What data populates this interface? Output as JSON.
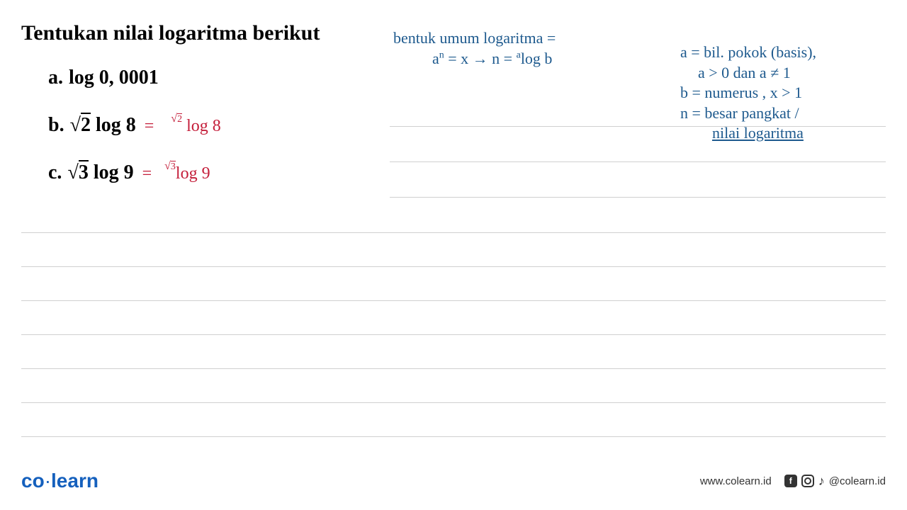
{
  "title": "Tentukan nilai logaritma berikut",
  "problems": {
    "a": {
      "label": "a.",
      "text": "log 0, 0001"
    },
    "b": {
      "label": "b.",
      "sqrt_val": "2",
      "rest": " log 8",
      "annot_eq": "=",
      "annot_sup_sqrt": "2",
      "annot_main": " log 8"
    },
    "c": {
      "label": "c.",
      "sqrt_val": "3",
      "rest": " log 9",
      "annot_eq": "=",
      "annot_sup_sqrt": "3",
      "annot_main": "log 9"
    }
  },
  "blue_notes": {
    "note1_line1": "bentuk umum logaritma =",
    "note1_line2_a": "a",
    "note1_line2_exp": "n",
    "note1_line2_b": " = x → n = ",
    "note1_line2_sup": "a",
    "note1_line2_c": "log b",
    "note2_line1": "a = bil. pokok (basis),",
    "note2_line2": "a > 0  dan a ≠ 1",
    "note2_line3": "b = numerus , x > 1",
    "note2_line4": "n = besar pangkat /",
    "note2_line5": "nilai logaritma"
  },
  "ruled_lines": {
    "short_positions": [
      0,
      50,
      100
    ],
    "full_positions": [
      150,
      198,
      246,
      294,
      342,
      390,
      438
    ]
  },
  "footer": {
    "logo_co": "co",
    "logo_dot": "·",
    "logo_learn": "learn",
    "url": "www.colearn.id",
    "handle": "@colearn.id"
  },
  "colors": {
    "text": "#000000",
    "blue_ink": "#1e5a8e",
    "red_ink": "#c41e3a",
    "rule": "#d0d0d0",
    "brand": "#1560bd",
    "footer_text": "#333333",
    "background": "#ffffff"
  }
}
